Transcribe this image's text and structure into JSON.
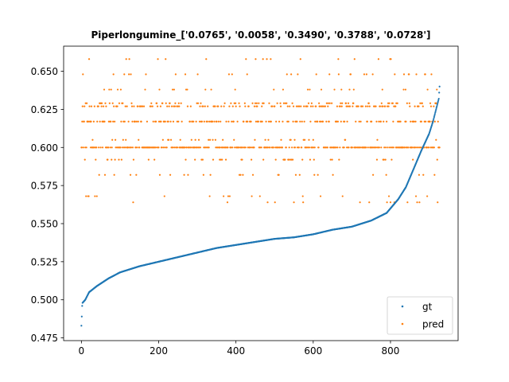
{
  "chart_data": {
    "type": "scatter",
    "title": "Piperlongumine_['0.0765', '0.0058', '0.3490', '0.3788', '0.0728']",
    "xlabel": "",
    "ylabel": "",
    "xlim": [
      -46,
      975
    ],
    "ylim": [
      0.4732,
      0.6665
    ],
    "x_ticks": [
      0,
      200,
      400,
      600,
      800
    ],
    "y_ticks": [
      0.475,
      0.5,
      0.525,
      0.55,
      0.575,
      0.6,
      0.625,
      0.65
    ],
    "n_points": 928,
    "grid": false,
    "legend_position": "bottom-right",
    "series": [
      {
        "name": "gt",
        "color": "#1f77b4",
        "marker_size": 1,
        "description": "sorted ground truth values, rising curve",
        "anchors": [
          [
            0,
            0.483
          ],
          [
            1,
            0.489
          ],
          [
            2,
            0.496
          ],
          [
            3,
            0.498
          ],
          [
            10,
            0.5
          ],
          [
            20,
            0.505
          ],
          [
            40,
            0.509
          ],
          [
            70,
            0.514
          ],
          [
            100,
            0.518
          ],
          [
            150,
            0.522
          ],
          [
            200,
            0.525
          ],
          [
            250,
            0.528
          ],
          [
            300,
            0.531
          ],
          [
            350,
            0.534
          ],
          [
            400,
            0.536
          ],
          [
            450,
            0.538
          ],
          [
            500,
            0.54
          ],
          [
            550,
            0.541
          ],
          [
            600,
            0.543
          ],
          [
            650,
            0.546
          ],
          [
            700,
            0.548
          ],
          [
            750,
            0.552
          ],
          [
            790,
            0.557
          ],
          [
            800,
            0.56
          ],
          [
            820,
            0.566
          ],
          [
            840,
            0.574
          ],
          [
            860,
            0.586
          ],
          [
            880,
            0.598
          ],
          [
            900,
            0.609
          ],
          [
            910,
            0.617
          ],
          [
            918,
            0.625
          ],
          [
            925,
            0.632
          ],
          [
            927,
            0.64
          ]
        ]
      },
      {
        "name": "pred",
        "color": "#ff7f0e",
        "marker_size": 1,
        "description": "model predictions, clustered at discrete levels",
        "levels": [
          0.6,
          0.617,
          0.627,
          0.629,
          0.592,
          0.605,
          0.638,
          0.648,
          0.582,
          0.568,
          0.564,
          0.658
        ],
        "level_weights": [
          0.38,
          0.18,
          0.13,
          0.08,
          0.05,
          0.04,
          0.03,
          0.03,
          0.03,
          0.02,
          0.015,
          0.015
        ]
      }
    ]
  }
}
